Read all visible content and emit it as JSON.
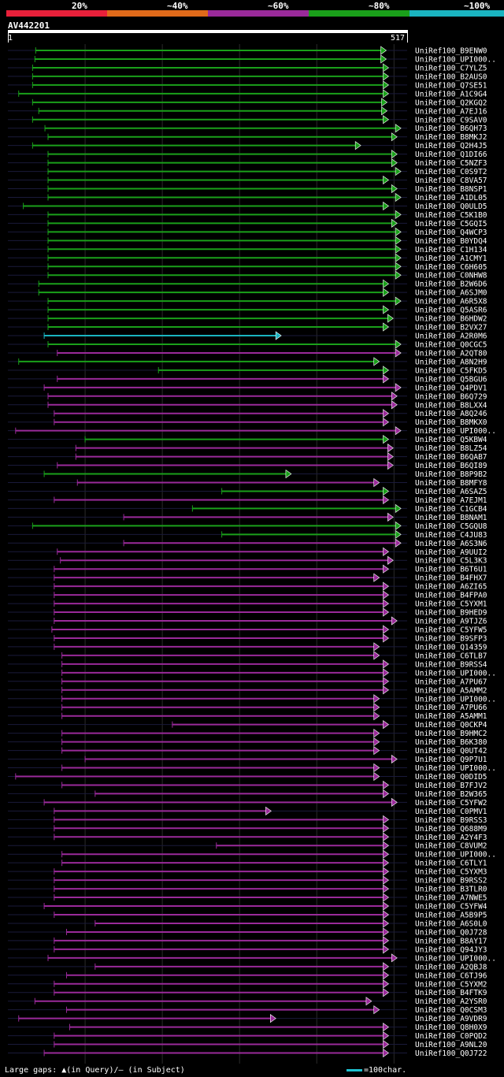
{
  "legend": {
    "items": [
      {
        "label": "20%",
        "color": "#e8203a"
      },
      {
        "label": "~40%",
        "color": "#e06a1a"
      },
      {
        "label": "~60%",
        "color": "#9a2a9a"
      },
      {
        "label": "~80%",
        "color": "#1aa01a"
      },
      {
        "label": "~100%",
        "color": "#1ab4c0"
      }
    ]
  },
  "query": {
    "id": "AV442201",
    "start": "1",
    "end": "517",
    "length": 517
  },
  "footer": {
    "note": "Large gaps: ▲(in Query)/– (in Subject)",
    "scale": "=100char."
  },
  "chart_data": {
    "type": "alignment-map",
    "query_length": 517,
    "hits": [
      {
        "name": "UniRef100_B9ENW0",
        "start": 36,
        "end": 489,
        "identity": "80"
      },
      {
        "name": "UniRef100_UPI000..",
        "start": 35,
        "end": 489,
        "identity": "80"
      },
      {
        "name": "UniRef100_C7YLZ5",
        "start": 32,
        "end": 492,
        "identity": "80"
      },
      {
        "name": "UniRef100_B2AUS0",
        "start": 32,
        "end": 492,
        "identity": "80"
      },
      {
        "name": "UniRef100_Q7SE51",
        "start": 32,
        "end": 492,
        "identity": "80"
      },
      {
        "name": "UniRef100_A1C9G4",
        "start": 14,
        "end": 492,
        "identity": "80"
      },
      {
        "name": "UniRef100_Q2KGQ2",
        "start": 32,
        "end": 490,
        "identity": "80"
      },
      {
        "name": "UniRef100_A7EJ16",
        "start": 40,
        "end": 490,
        "identity": "80"
      },
      {
        "name": "UniRef100_C9SAV0",
        "start": 32,
        "end": 492,
        "identity": "80"
      },
      {
        "name": "UniRef100_B6QH73",
        "start": 48,
        "end": 508,
        "identity": "80"
      },
      {
        "name": "UniRef100_B8MKJ2",
        "start": 52,
        "end": 503,
        "identity": "80"
      },
      {
        "name": "UniRef100_Q2H4J5",
        "start": 32,
        "end": 456,
        "identity": "80"
      },
      {
        "name": "UniRef100_Q1DI66",
        "start": 52,
        "end": 503,
        "identity": "80"
      },
      {
        "name": "UniRef100_C5NZF3",
        "start": 52,
        "end": 503,
        "identity": "80"
      },
      {
        "name": "UniRef100_C0S9T2",
        "start": 52,
        "end": 508,
        "identity": "80"
      },
      {
        "name": "UniRef100_C8VA57",
        "start": 52,
        "end": 492,
        "identity": "80"
      },
      {
        "name": "UniRef100_B8NSP1",
        "start": 52,
        "end": 503,
        "identity": "80"
      },
      {
        "name": "UniRef100_A1DL05",
        "start": 52,
        "end": 508,
        "identity": "80"
      },
      {
        "name": "UniRef100_Q0ULD5",
        "start": 20,
        "end": 492,
        "identity": "80"
      },
      {
        "name": "UniRef100_C5K1B0",
        "start": 52,
        "end": 508,
        "identity": "80"
      },
      {
        "name": "UniRef100_C5GQI5",
        "start": 52,
        "end": 503,
        "identity": "80"
      },
      {
        "name": "UniRef100_Q4WCP3",
        "start": 52,
        "end": 508,
        "identity": "80"
      },
      {
        "name": "UniRef100_B0YDQ4",
        "start": 52,
        "end": 508,
        "identity": "80"
      },
      {
        "name": "UniRef100_C1H134",
        "start": 52,
        "end": 508,
        "identity": "80"
      },
      {
        "name": "UniRef100_A1CMY1",
        "start": 52,
        "end": 508,
        "identity": "80"
      },
      {
        "name": "UniRef100_C6H605",
        "start": 52,
        "end": 508,
        "identity": "80"
      },
      {
        "name": "UniRef100_C0NHW8",
        "start": 52,
        "end": 508,
        "identity": "80"
      },
      {
        "name": "UniRef100_B2W6D6",
        "start": 40,
        "end": 492,
        "identity": "80"
      },
      {
        "name": "UniRef100_A6SJM0",
        "start": 40,
        "end": 492,
        "identity": "80"
      },
      {
        "name": "UniRef100_A6R5X8",
        "start": 52,
        "end": 508,
        "identity": "80"
      },
      {
        "name": "UniRef100_Q5ASR6",
        "start": 52,
        "end": 492,
        "identity": "80"
      },
      {
        "name": "UniRef100_B6HDW2",
        "start": 52,
        "end": 498,
        "identity": "80"
      },
      {
        "name": "UniRef100_B2VX27",
        "start": 52,
        "end": 492,
        "identity": "80"
      },
      {
        "name": "UniRef100_A2R0M6",
        "start": 47,
        "end": 353,
        "identity": "100"
      },
      {
        "name": "UniRef100_Q0CGC5",
        "start": 52,
        "end": 508,
        "identity": "80"
      },
      {
        "name": "UniRef100_A2QT80",
        "start": 64,
        "end": 508,
        "identity": "60"
      },
      {
        "name": "UniRef100_A8N2H9",
        "start": 14,
        "end": 480,
        "identity": "80"
      },
      {
        "name": "UniRef100_C5FKD5",
        "start": 195,
        "end": 492,
        "identity": "80"
      },
      {
        "name": "UniRef100_Q5BGU6",
        "start": 64,
        "end": 492,
        "identity": "60"
      },
      {
        "name": "UniRef100_Q4PDV1",
        "start": 47,
        "end": 508,
        "identity": "60"
      },
      {
        "name": "UniRef100_B6Q729",
        "start": 52,
        "end": 503,
        "identity": "60"
      },
      {
        "name": "UniRef100_B8LXX4",
        "start": 52,
        "end": 503,
        "identity": "60"
      },
      {
        "name": "UniRef100_A8Q246",
        "start": 60,
        "end": 492,
        "identity": "60"
      },
      {
        "name": "UniRef100_B8MKX0",
        "start": 60,
        "end": 492,
        "identity": "60"
      },
      {
        "name": "UniRef100_UPI000..",
        "start": 10,
        "end": 508,
        "identity": "60"
      },
      {
        "name": "UniRef100_Q5KBW4",
        "start": 100,
        "end": 492,
        "identity": "80"
      },
      {
        "name": "UniRef100_B8LZ54",
        "start": 88,
        "end": 498,
        "identity": "60"
      },
      {
        "name": "UniRef100_B6QAB7",
        "start": 88,
        "end": 498,
        "identity": "60"
      },
      {
        "name": "UniRef100_B6QI89",
        "start": 64,
        "end": 498,
        "identity": "60"
      },
      {
        "name": "UniRef100_B8P9B2",
        "start": 47,
        "end": 366,
        "identity": "80"
      },
      {
        "name": "UniRef100_B8MFY8",
        "start": 90,
        "end": 480,
        "identity": "60"
      },
      {
        "name": "UniRef100_A6SAZ5",
        "start": 277,
        "end": 492,
        "identity": "80"
      },
      {
        "name": "UniRef100_A7EJM1",
        "start": 60,
        "end": 492,
        "identity": "60"
      },
      {
        "name": "UniRef100_C1GCB4",
        "start": 239,
        "end": 508,
        "identity": "80"
      },
      {
        "name": "UniRef100_B8NAM1",
        "start": 150,
        "end": 498,
        "identity": "60"
      },
      {
        "name": "UniRef100_C5GQU8",
        "start": 32,
        "end": 508,
        "identity": "80"
      },
      {
        "name": "UniRef100_C4JU83",
        "start": 277,
        "end": 508,
        "identity": "80"
      },
      {
        "name": "UniRef100_A6S3N6",
        "start": 150,
        "end": 508,
        "identity": "60"
      },
      {
        "name": "UniRef100_A9UUI2",
        "start": 64,
        "end": 492,
        "identity": "60"
      },
      {
        "name": "UniRef100_C5L3K3",
        "start": 68,
        "end": 498,
        "identity": "60"
      },
      {
        "name": "UniRef100_B6T6U1",
        "start": 60,
        "end": 492,
        "identity": "60"
      },
      {
        "name": "UniRef100_B4FHX7",
        "start": 60,
        "end": 480,
        "identity": "60"
      },
      {
        "name": "UniRef100_A6ZI65",
        "start": 60,
        "end": 492,
        "identity": "60"
      },
      {
        "name": "UniRef100_B4FPA0",
        "start": 60,
        "end": 492,
        "identity": "60"
      },
      {
        "name": "UniRef100_C5YXM1",
        "start": 60,
        "end": 492,
        "identity": "60"
      },
      {
        "name": "UniRef100_B9HED9",
        "start": 60,
        "end": 492,
        "identity": "60"
      },
      {
        "name": "UniRef100_A9TJZ6",
        "start": 60,
        "end": 503,
        "identity": "60"
      },
      {
        "name": "UniRef100_C5YFW5",
        "start": 57,
        "end": 492,
        "identity": "60"
      },
      {
        "name": "UniRef100_B9SFP3",
        "start": 60,
        "end": 492,
        "identity": "60"
      },
      {
        "name": "UniRef100_Q14359",
        "start": 60,
        "end": 480,
        "identity": "60"
      },
      {
        "name": "UniRef100_C6TLB7",
        "start": 70,
        "end": 480,
        "identity": "60"
      },
      {
        "name": "UniRef100_B9RSS4",
        "start": 70,
        "end": 492,
        "identity": "60"
      },
      {
        "name": "UniRef100_UPI000..",
        "start": 70,
        "end": 492,
        "identity": "60"
      },
      {
        "name": "UniRef100_A7PU67",
        "start": 70,
        "end": 492,
        "identity": "60"
      },
      {
        "name": "UniRef100_A5AMM2",
        "start": 70,
        "end": 492,
        "identity": "60"
      },
      {
        "name": "UniRef100_UPI000..",
        "start": 70,
        "end": 480,
        "identity": "60"
      },
      {
        "name": "UniRef100_A7PU66",
        "start": 70,
        "end": 480,
        "identity": "60"
      },
      {
        "name": "UniRef100_A5AMM1",
        "start": 70,
        "end": 480,
        "identity": "60"
      },
      {
        "name": "UniRef100_Q0CKP4",
        "start": 213,
        "end": 492,
        "identity": "60"
      },
      {
        "name": "UniRef100_B9HMC2",
        "start": 70,
        "end": 480,
        "identity": "60"
      },
      {
        "name": "UniRef100_B6K380",
        "start": 70,
        "end": 480,
        "identity": "60"
      },
      {
        "name": "UniRef100_Q0UT42",
        "start": 70,
        "end": 480,
        "identity": "60"
      },
      {
        "name": "UniRef100_Q9P7U1",
        "start": 100,
        "end": 503,
        "identity": "60"
      },
      {
        "name": "UniRef100_UPI000..",
        "start": 70,
        "end": 480,
        "identity": "60"
      },
      {
        "name": "UniRef100_Q0DID5",
        "start": 10,
        "end": 480,
        "identity": "60"
      },
      {
        "name": "UniRef100_B7FJV2",
        "start": 70,
        "end": 492,
        "identity": "60"
      },
      {
        "name": "UniRef100_B2W365",
        "start": 113,
        "end": 492,
        "identity": "60"
      },
      {
        "name": "UniRef100_C5YFW2",
        "start": 47,
        "end": 503,
        "identity": "60"
      },
      {
        "name": "UniRef100_C0PMV1",
        "start": 60,
        "end": 340,
        "identity": "60"
      },
      {
        "name": "UniRef100_B9RSS3",
        "start": 60,
        "end": 492,
        "identity": "60"
      },
      {
        "name": "UniRef100_Q688M9",
        "start": 60,
        "end": 492,
        "identity": "60"
      },
      {
        "name": "UniRef100_A2Y4F3",
        "start": 60,
        "end": 492,
        "identity": "60"
      },
      {
        "name": "UniRef100_C8VUM2",
        "start": 270,
        "end": 492,
        "identity": "60"
      },
      {
        "name": "UniRef100_UPI000..",
        "start": 70,
        "end": 492,
        "identity": "60"
      },
      {
        "name": "UniRef100_C6TLY1",
        "start": 70,
        "end": 492,
        "identity": "60"
      },
      {
        "name": "UniRef100_C5YXM3",
        "start": 60,
        "end": 492,
        "identity": "60"
      },
      {
        "name": "UniRef100_B9RSS2",
        "start": 60,
        "end": 492,
        "identity": "60"
      },
      {
        "name": "UniRef100_B3TLR0",
        "start": 60,
        "end": 492,
        "identity": "60"
      },
      {
        "name": "UniRef100_A7NWE5",
        "start": 60,
        "end": 492,
        "identity": "60"
      },
      {
        "name": "UniRef100_C5YFW4",
        "start": 47,
        "end": 492,
        "identity": "60"
      },
      {
        "name": "UniRef100_A5B9P5",
        "start": 60,
        "end": 492,
        "identity": "60"
      },
      {
        "name": "UniRef100_A6S0L0",
        "start": 113,
        "end": 492,
        "identity": "60"
      },
      {
        "name": "UniRef100_Q0J728",
        "start": 76,
        "end": 492,
        "identity": "60"
      },
      {
        "name": "UniRef100_B8AY17",
        "start": 60,
        "end": 492,
        "identity": "60"
      },
      {
        "name": "UniRef100_Q94JY3",
        "start": 60,
        "end": 492,
        "identity": "60"
      },
      {
        "name": "UniRef100_UPI000..",
        "start": 52,
        "end": 503,
        "identity": "60"
      },
      {
        "name": "UniRef100_A2QBJ8",
        "start": 113,
        "end": 492,
        "identity": "60"
      },
      {
        "name": "UniRef100_C6TJ96",
        "start": 76,
        "end": 492,
        "identity": "60"
      },
      {
        "name": "UniRef100_C5YXM2",
        "start": 60,
        "end": 492,
        "identity": "60"
      },
      {
        "name": "UniRef100_B4FTK9",
        "start": 60,
        "end": 492,
        "identity": "60"
      },
      {
        "name": "UniRef100_A2YSR0",
        "start": 35,
        "end": 470,
        "identity": "60"
      },
      {
        "name": "UniRef100_Q0CSM3",
        "start": 76,
        "end": 480,
        "identity": "60"
      },
      {
        "name": "UniRef100_A9VDR9",
        "start": 14,
        "end": 346,
        "identity": "60"
      },
      {
        "name": "UniRef100_Q8H0X9",
        "start": 80,
        "end": 492,
        "identity": "60"
      },
      {
        "name": "UniRef100_C0PQD2",
        "start": 60,
        "end": 492,
        "identity": "60"
      },
      {
        "name": "UniRef100_A9NL20",
        "start": 60,
        "end": 492,
        "identity": "60"
      },
      {
        "name": "UniRef100_Q0J722",
        "start": 47,
        "end": 492,
        "identity": "60"
      }
    ]
  }
}
